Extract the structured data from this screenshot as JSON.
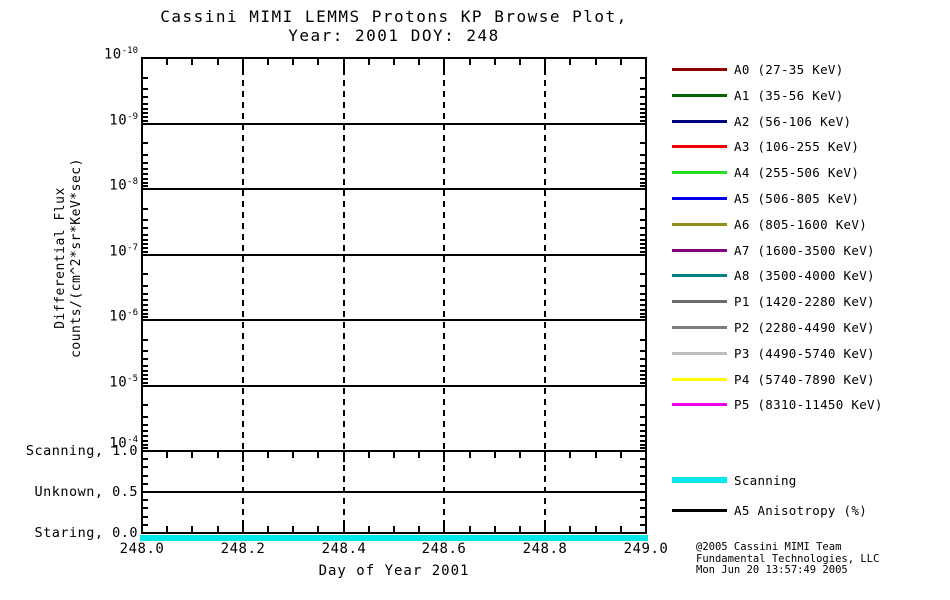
{
  "title": {
    "line1": "Cassini MIMI LEMMS Protons KP Browse Plot,",
    "line2": "Year: 2001 DOY: 248"
  },
  "chart_data": {
    "type": "line",
    "title": "Cassini MIMI LEMMS Protons KP Browse Plot, Year: 2001 DOY: 248",
    "xlabel": "Day of Year 2001",
    "ylabel_line1": "Differential Flux",
    "ylabel_line2": "counts/(cm^2*sr*KeV*sec)",
    "xlim": [
      248.0,
      249.0
    ],
    "x_major_ticks": [
      248.0,
      248.2,
      248.4,
      248.6,
      248.8,
      249.0
    ],
    "x_tick_labels": [
      "248.0",
      "248.2",
      "248.4",
      "248.6",
      "248.8",
      "249.0"
    ],
    "x_minor_step": 0.05,
    "flux_axis": {
      "scale": "log",
      "orientation": "inverted, 1e-10 at top to 1e-4 at bottom",
      "tick_exponents": [
        -10,
        -9,
        -8,
        -7,
        -6,
        -5,
        -4
      ]
    },
    "mode_axis": {
      "tick_labels": [
        "Scanning, 1.0",
        "Unknown, 0.5",
        "Staring, 0.0"
      ],
      "tick_values": [
        1.0,
        0.5,
        0.0
      ]
    },
    "grid": {
      "horizontal_style": "solid",
      "vertical_style": "dashed"
    },
    "plotted_flux_data": "none visible (flux panel empty)",
    "series": [
      {
        "name": "Scanning",
        "color": "#00E8E8",
        "x": [
          248.0,
          249.0
        ],
        "y_mode": [
          0.0,
          0.0
        ],
        "description": "thick cyan mode line constant at 0.0 (Staring level) across full day"
      }
    ]
  },
  "legend": {
    "entries": [
      {
        "label": "A0 (27-35 KeV)",
        "color": "#8B0000"
      },
      {
        "label": "A1 (35-56 KeV)",
        "color": "#006400"
      },
      {
        "label": "A2 (56-106 KeV)",
        "color": "#000080"
      },
      {
        "label": "A3 (106-255 KeV)",
        "color": "#EE0000"
      },
      {
        "label": "A4 (255-506 KeV)",
        "color": "#22DD22"
      },
      {
        "label": "A5 (506-805 KeV)",
        "color": "#0000EE"
      },
      {
        "label": "A6 (805-1600 KeV)",
        "color": "#909018"
      },
      {
        "label": "A7 (1600-3500 KeV)",
        "color": "#800080"
      },
      {
        "label": "A8 (3500-4000 KeV)",
        "color": "#008080"
      },
      {
        "label": "P1 (1420-2280 KeV)",
        "color": "#6B6B6B"
      },
      {
        "label": "P2 (2280-4490 KeV)",
        "color": "#7E7E7E"
      },
      {
        "label": "P3 (4490-5740 KeV)",
        "color": "#BEBEBE"
      },
      {
        "label": "P4 (5740-7890 KeV)",
        "color": "#FFFF00"
      },
      {
        "label": "P5 (8310-11450 KeV)",
        "color": "#EE00EE"
      }
    ],
    "extra_entries": [
      {
        "label": "Scanning",
        "color": "#00E8E8",
        "thick": true
      },
      {
        "label": "A5 Anisotropy (%)",
        "color": "#000000",
        "thick": false
      }
    ]
  },
  "credits": {
    "line1": "@2005 Cassini MIMI Team",
    "line2": "Fundamental Technologies, LLC",
    "line3": "Mon Jun 20 13:57:49 2005"
  }
}
